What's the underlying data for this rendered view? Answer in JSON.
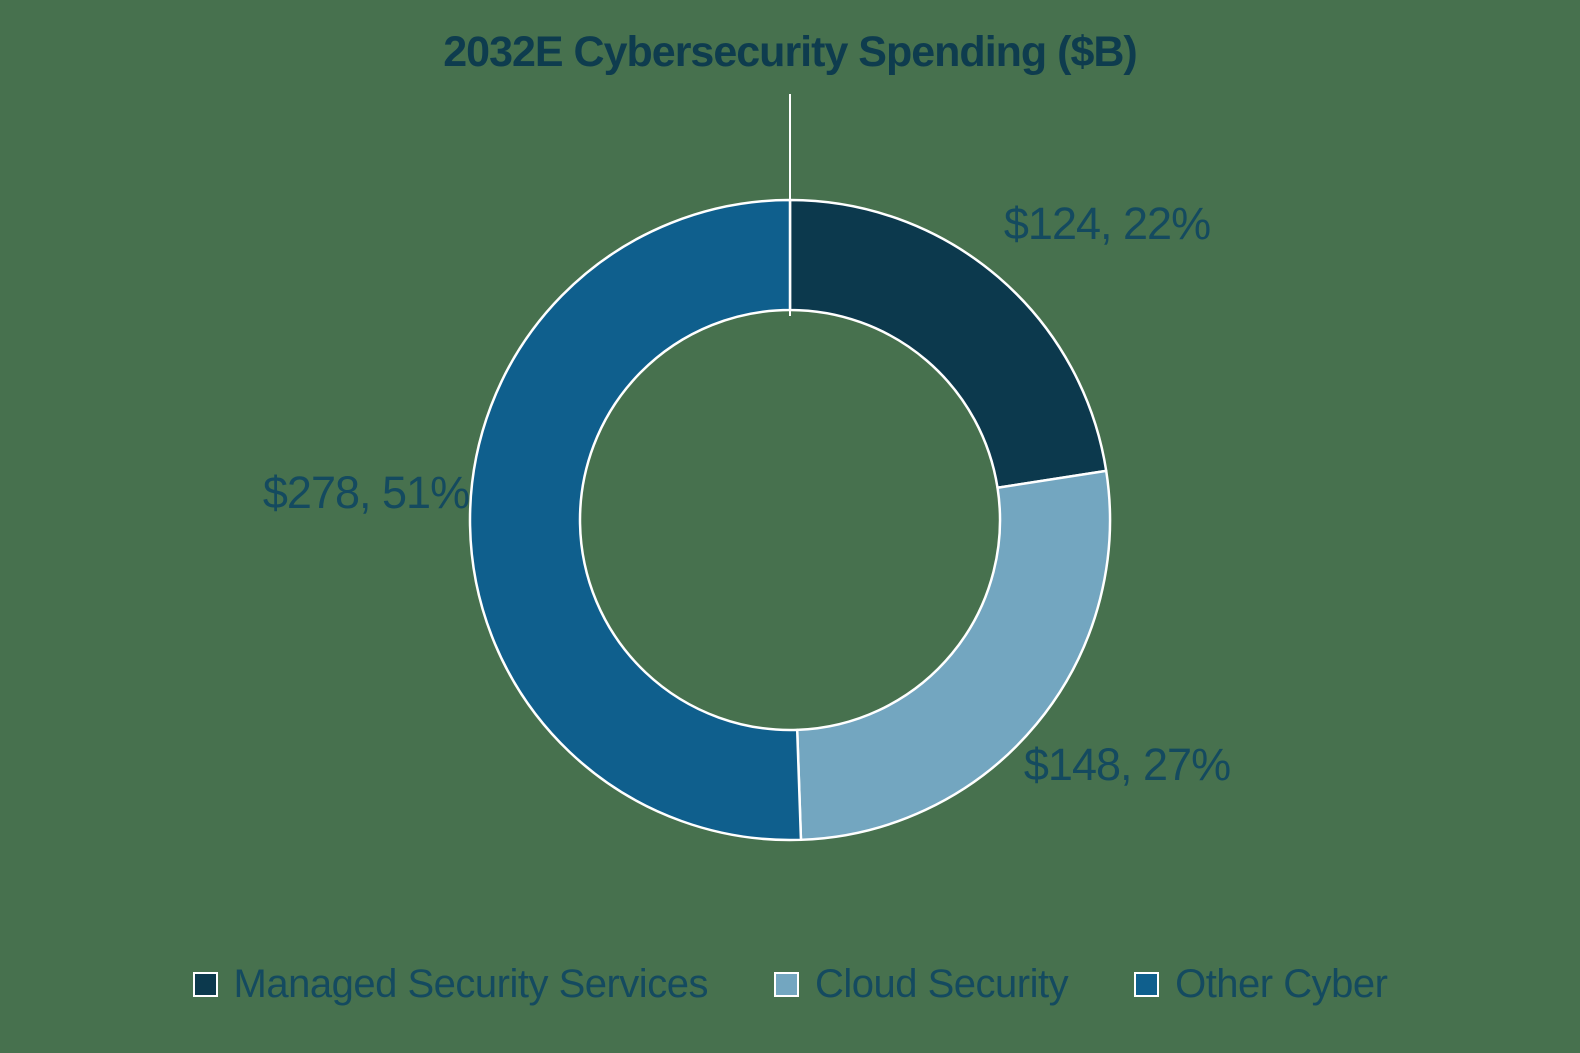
{
  "page": {
    "background": "#47714E"
  },
  "colors": {
    "title": "#0E3C4E",
    "label": "#144A5F",
    "legend_text": "#144A5F",
    "leader_line": "#FFFFFF",
    "segment_stroke": "#FFFFFF"
  },
  "title": "2032E Cybersecurity Spending ($B)",
  "chart_data": {
    "type": "pie",
    "subtype": "donut",
    "title": "2032E Cybersecurity Spending ($B)",
    "units": "$B",
    "start_angle_deg": 0,
    "direction": "clockwise",
    "legend_position": "bottom",
    "total": 550,
    "series": [
      {
        "name": "Managed Security Services",
        "value": 124,
        "percent": 22,
        "data_label": "$124, 22%",
        "color": "#0C394D"
      },
      {
        "name": "Cloud Security",
        "value": 148,
        "percent": 27,
        "data_label": "$148, 27%",
        "color": "#73A6C0"
      },
      {
        "name": "Other Cyber",
        "value": 278,
        "percent": 51,
        "data_label": "$278, 51%",
        "color": "#0F5F8D"
      }
    ]
  }
}
